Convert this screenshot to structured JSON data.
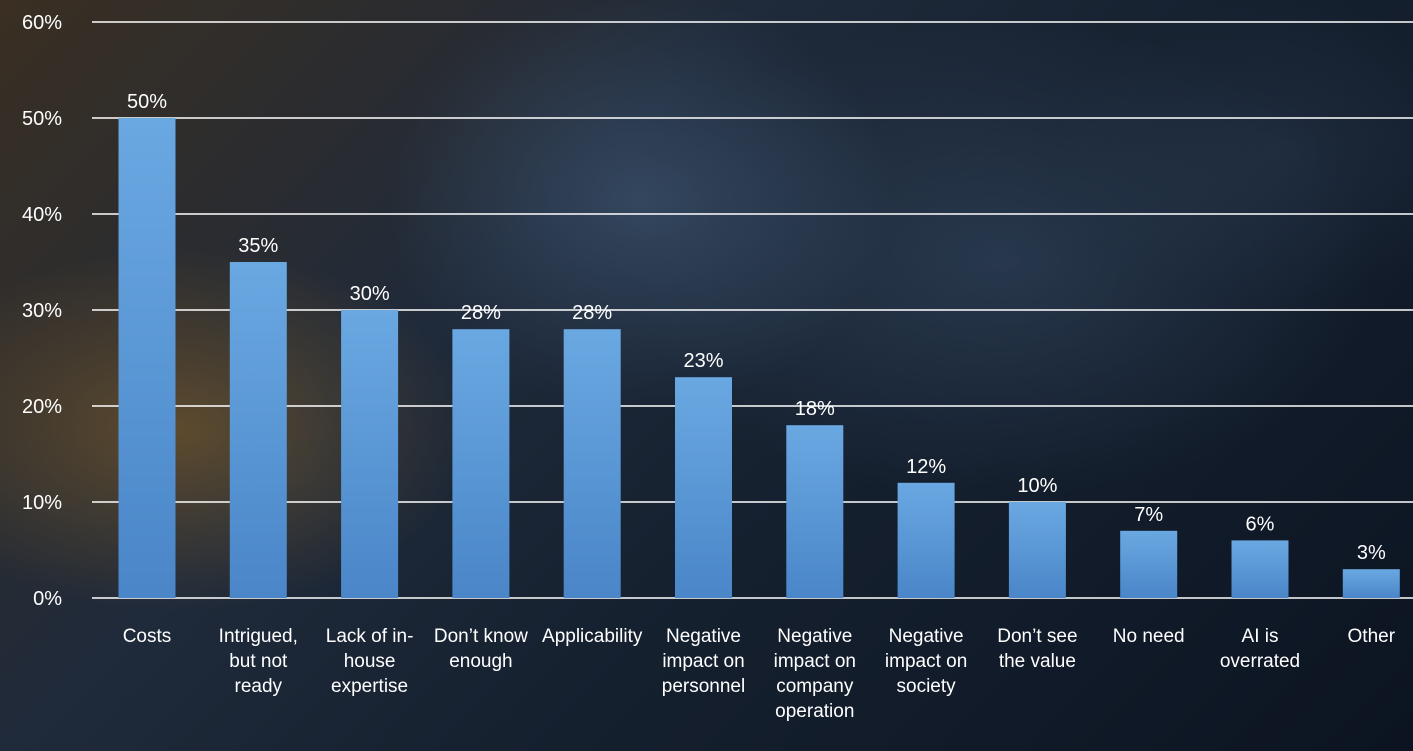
{
  "chart_data": {
    "type": "bar",
    "categories": [
      "Costs",
      "Intrigued, but not ready",
      "Lack of in- house expertise",
      "Don’t know enough",
      "Applicability",
      "Negative impact on personnel",
      "Negative impact on company operation",
      "Negative impact on society",
      "Don’t see the value",
      "No need",
      "AI is overrated",
      "Other"
    ],
    "category_lines": [
      [
        "Costs"
      ],
      [
        "Intrigued,",
        "but not",
        "ready"
      ],
      [
        "Lack of in-",
        "house",
        "expertise"
      ],
      [
        "Don’t know",
        "enough"
      ],
      [
        "Applicability"
      ],
      [
        "Negative",
        "impact on",
        "personnel"
      ],
      [
        "Negative",
        "impact on",
        "company",
        "operation"
      ],
      [
        "Negative",
        "impact on",
        "society"
      ],
      [
        "Don’t see",
        "the value"
      ],
      [
        "No need"
      ],
      [
        "AI is",
        "overrated"
      ],
      [
        "Other"
      ]
    ],
    "values": [
      50,
      35,
      30,
      28,
      28,
      23,
      18,
      12,
      10,
      7,
      6,
      3
    ],
    "value_labels": [
      "50%",
      "35%",
      "30%",
      "28%",
      "28%",
      "23%",
      "18%",
      "12%",
      "10%",
      "7%",
      "6%",
      "3%"
    ],
    "ylim": [
      0,
      60
    ],
    "yticks": [
      0,
      10,
      20,
      30,
      40,
      50,
      60
    ],
    "ytick_labels": [
      "0%",
      "10%",
      "20%",
      "30%",
      "40%",
      "50%",
      "60%"
    ],
    "grid": true,
    "bar_color": "#5b9bd5",
    "gridline_color": "#ffffff"
  }
}
